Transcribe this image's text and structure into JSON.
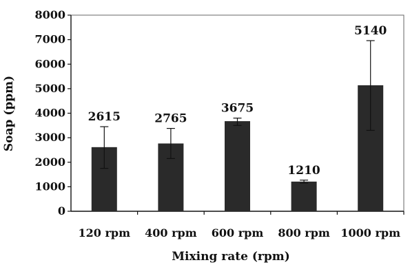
{
  "chart_data": {
    "type": "bar",
    "xlabel": "Mixing rate (rpm)",
    "ylabel": "Soap (ppm)",
    "categories": [
      "120 rpm",
      "400 rpm",
      "600 rpm",
      "800 rpm",
      "1000 rpm"
    ],
    "values": [
      2615,
      2765,
      3675,
      1210,
      5140
    ],
    "data_labels": [
      "2615",
      "2765",
      "3675",
      "1210",
      "5140"
    ],
    "error_low": [
      1750,
      2150,
      3500,
      1150,
      3300
    ],
    "error_high": [
      3450,
      3380,
      3800,
      1270,
      6960
    ],
    "ylim": [
      0,
      8000
    ],
    "yticks": [
      0,
      1000,
      2000,
      3000,
      4000,
      5000,
      6000,
      7000,
      8000
    ],
    "ytick_labels": [
      "0",
      "1000",
      "2000",
      "3000",
      "4000",
      "5000",
      "6000",
      "7000",
      "8000"
    ],
    "grid": false,
    "legend": "none",
    "bar_color": "#2a2a2a"
  }
}
